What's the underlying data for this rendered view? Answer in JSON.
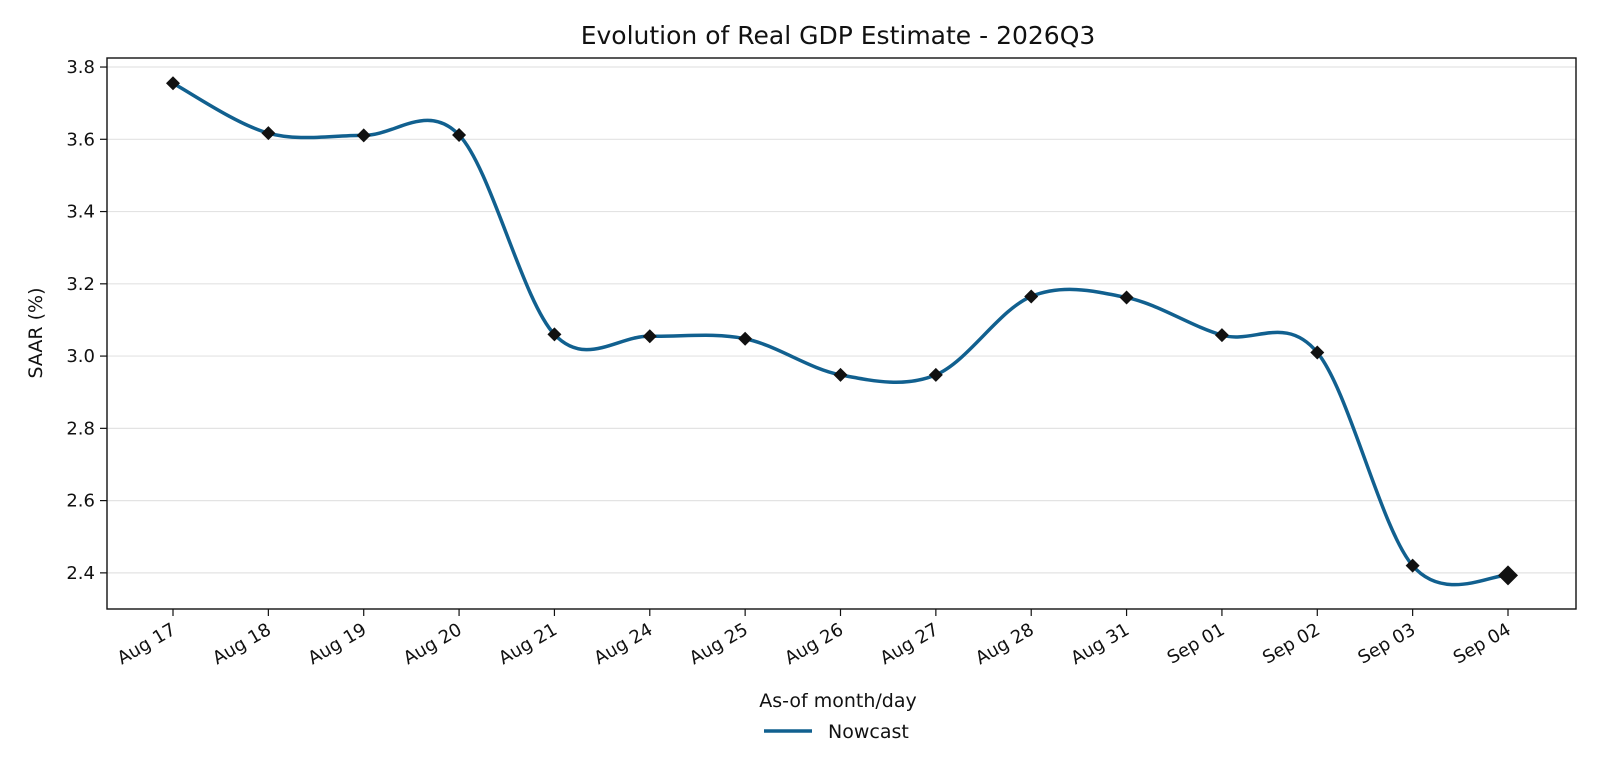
{
  "chart_data": {
    "type": "line",
    "title": "Evolution of Real GDP Estimate - 2026Q3",
    "xlabel": "As-of month/day",
    "ylabel": "SAAR (%)",
    "categories": [
      "Aug 17",
      "Aug 18",
      "Aug 19",
      "Aug 20",
      "Aug 21",
      "Aug 24",
      "Aug 25",
      "Aug 26",
      "Aug 27",
      "Aug 28",
      "Aug 31",
      "Sep 01",
      "Sep 02",
      "Sep 03",
      "Sep 04"
    ],
    "series": [
      {
        "name": "Nowcast",
        "values": [
          3.755,
          3.617,
          3.611,
          3.612,
          3.06,
          3.055,
          3.048,
          2.948,
          2.948,
          3.165,
          3.162,
          3.058,
          3.01,
          2.42,
          2.393
        ],
        "color": "#11608f",
        "marker": "diamond",
        "marker_color": "#111111",
        "smoothed": true
      }
    ],
    "ylim": [
      2.3,
      3.825
    ],
    "yticks": [
      2.4,
      2.6,
      2.8,
      3.0,
      3.2,
      3.4,
      3.6,
      3.8
    ],
    "ytick_labels": [
      "2.4",
      "2.6",
      "2.8",
      "3.0",
      "3.2",
      "3.4",
      "3.6",
      "3.8"
    ],
    "grid": "horizontal",
    "legend": "bottom-center",
    "last_point_emphasized": true
  }
}
